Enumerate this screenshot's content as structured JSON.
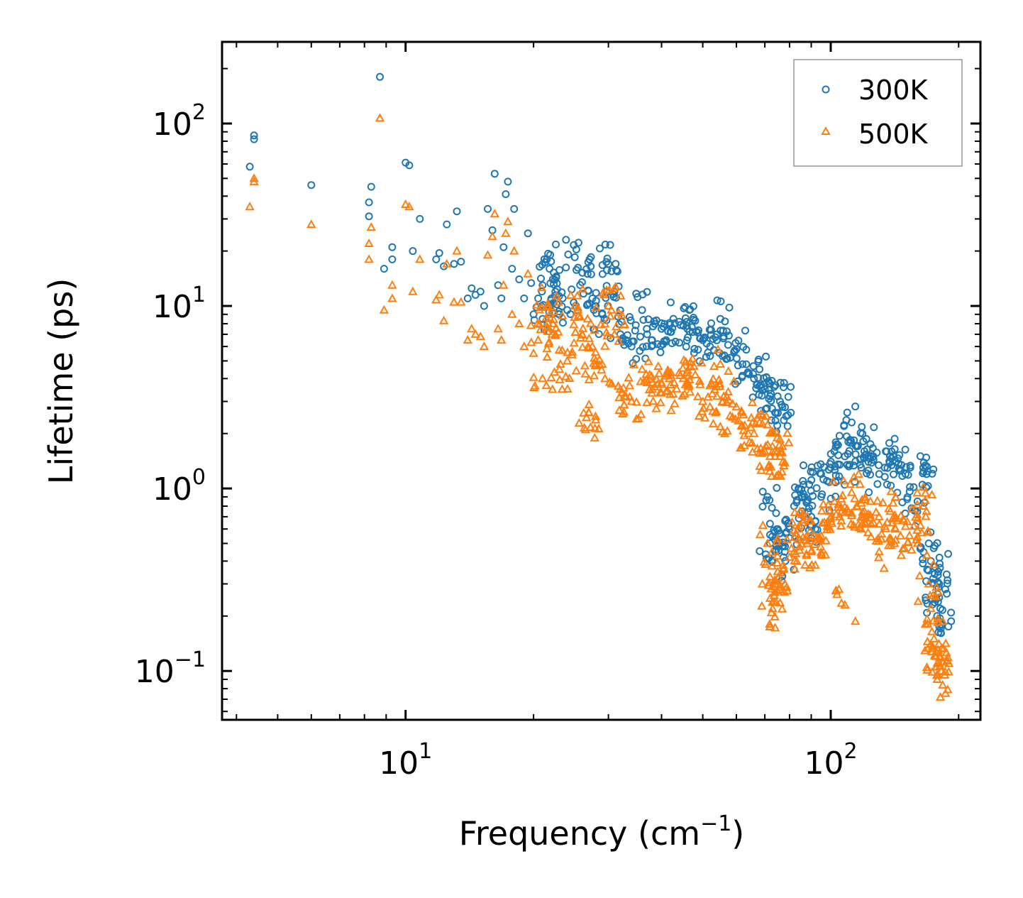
{
  "chart_data": {
    "type": "scatter",
    "title": "",
    "xlabel": "Frequency (cm",
    "xlabel_sup": "−1",
    "xlabel_end": ")",
    "ylabel": "Lifetime (ps)",
    "xscale": "log",
    "yscale": "log",
    "xlim": [
      3.7,
      225
    ],
    "ylim": [
      0.054,
      280
    ],
    "x_ticks": [
      {
        "value": 10,
        "base": "10",
        "exp": "1"
      },
      {
        "value": 100,
        "base": "10",
        "exp": "2"
      }
    ],
    "y_ticks": [
      {
        "value": 0.1,
        "base": "10",
        "exp": "−1"
      },
      {
        "value": 1,
        "base": "10",
        "exp": "0"
      },
      {
        "value": 10,
        "base": "10",
        "exp": "1"
      },
      {
        "value": 100,
        "base": "10",
        "exp": "2"
      }
    ],
    "legend_position": "top-right",
    "series": [
      {
        "name": "300K",
        "marker": "circle",
        "color": "#1f77b4",
        "points": [
          [
            4.3,
            58
          ],
          [
            4.4,
            86
          ],
          [
            4.4,
            82
          ],
          [
            6.0,
            46
          ],
          [
            8.2,
            37
          ],
          [
            8.2,
            31
          ],
          [
            8.3,
            45
          ],
          [
            8.7,
            180
          ],
          [
            8.9,
            16
          ],
          [
            9.3,
            21
          ],
          [
            9.3,
            18
          ],
          [
            10.0,
            61
          ],
          [
            10.2,
            59
          ],
          [
            10.4,
            20
          ],
          [
            10.8,
            30
          ],
          [
            11.8,
            18
          ],
          [
            12.0,
            19.5
          ],
          [
            12.3,
            16.5
          ],
          [
            12.5,
            28
          ],
          [
            13.0,
            17
          ],
          [
            13.2,
            33
          ],
          [
            13.5,
            17.5
          ],
          [
            14.0,
            11
          ],
          [
            14.3,
            12.5
          ],
          [
            14.6,
            11.5
          ],
          [
            15.0,
            12
          ],
          [
            15.3,
            10
          ],
          [
            15.6,
            34
          ],
          [
            16.0,
            26
          ],
          [
            16.2,
            53
          ],
          [
            16.5,
            13
          ],
          [
            16.8,
            11
          ],
          [
            17.0,
            21
          ],
          [
            17.2,
            41
          ],
          [
            17.4,
            48
          ],
          [
            17.8,
            16
          ],
          [
            18.0,
            34
          ],
          [
            18.5,
            14
          ],
          [
            19.0,
            11
          ],
          [
            19.4,
            25
          ],
          [
            20.0,
            9
          ],
          [
            20.5,
            11
          ],
          [
            21.0,
            8.5
          ],
          [
            21.5,
            18
          ],
          [
            21.8,
            16
          ],
          [
            22.2,
            14
          ],
          [
            22.5,
            12
          ],
          [
            23.0,
            9
          ],
          [
            24.0,
            9.5
          ],
          [
            25.0,
            18.5
          ],
          [
            26.0,
            13.5
          ],
          [
            26.8,
            15
          ],
          [
            27.5,
            11
          ],
          [
            28.0,
            10
          ],
          [
            29.0,
            9
          ],
          [
            30.0,
            17
          ],
          [
            30.5,
            15.5
          ],
          [
            31.0,
            12
          ],
          [
            32.0,
            7
          ],
          [
            33.0,
            6.5
          ],
          [
            34.0,
            6
          ],
          [
            36.0,
            9.5
          ],
          [
            37.0,
            7
          ],
          [
            38.0,
            6.5
          ],
          [
            40.0,
            7.5
          ],
          [
            41.0,
            6.5
          ],
          [
            42.0,
            7.2
          ],
          [
            44.0,
            8.2
          ],
          [
            45.0,
            7.8
          ],
          [
            46.0,
            7.5
          ],
          [
            48.0,
            8.3
          ],
          [
            50.0,
            6.5
          ],
          [
            52.0,
            6.0
          ],
          [
            54.0,
            7.0
          ],
          [
            55.0,
            8.5
          ],
          [
            56.0,
            6.8
          ],
          [
            58.0,
            5.2
          ],
          [
            60.0,
            5.8
          ],
          [
            62.0,
            4.8
          ],
          [
            64.0,
            4.3
          ],
          [
            66.0,
            4.0
          ],
          [
            68.0,
            4.5
          ],
          [
            70.0,
            3.5
          ],
          [
            72.0,
            3.2
          ],
          [
            74.0,
            2.6
          ],
          [
            75.0,
            3.2
          ],
          [
            76.0,
            3.0
          ],
          [
            77.0,
            2.8
          ],
          [
            71.0,
            0.9
          ],
          [
            72.0,
            0.5
          ],
          [
            73.0,
            0.4
          ],
          [
            74.0,
            0.45
          ],
          [
            75.0,
            0.6
          ],
          [
            76.0,
            0.5
          ],
          [
            78.0,
            0.45
          ],
          [
            80.0,
            0.6
          ],
          [
            82.0,
            0.8
          ],
          [
            84.0,
            1.0
          ],
          [
            86.0,
            1.1
          ],
          [
            88.0,
            0.85
          ],
          [
            90.0,
            0.7
          ],
          [
            92.0,
            0.6
          ],
          [
            95.0,
            0.9
          ],
          [
            98.0,
            1.1
          ],
          [
            100.0,
            1.3
          ],
          [
            102.0,
            1.6
          ],
          [
            105.0,
            1.35
          ],
          [
            108.0,
            1.5
          ],
          [
            110.0,
            1.8
          ],
          [
            112.0,
            2.3
          ],
          [
            115.0,
            1.7
          ],
          [
            118.0,
            1.3
          ],
          [
            120.0,
            1.6
          ],
          [
            124.0,
            1.75
          ],
          [
            126.0,
            1.5
          ],
          [
            130.0,
            1.2
          ],
          [
            134.0,
            1.3
          ],
          [
            138.0,
            1.5
          ],
          [
            142.0,
            1.4
          ],
          [
            146.0,
            1.25
          ],
          [
            150.0,
            1.2
          ],
          [
            155.0,
            0.78
          ],
          [
            160.0,
            0.85
          ],
          [
            165.0,
            1.3
          ],
          [
            168.0,
            1.2
          ],
          [
            170.0,
            0.5
          ],
          [
            172.0,
            0.4
          ],
          [
            175.0,
            0.3
          ],
          [
            177.0,
            0.25
          ],
          [
            178.0,
            0.2
          ],
          [
            179.0,
            0.35
          ],
          [
            180.0,
            0.3
          ],
          [
            181.0,
            0.22
          ],
          [
            182.0,
            0.18
          ]
        ]
      },
      {
        "name": "500K",
        "marker": "triangle",
        "color": "#ff7f0e",
        "points": [
          [
            4.3,
            35
          ],
          [
            4.4,
            50
          ],
          [
            4.4,
            48
          ],
          [
            6.0,
            28
          ],
          [
            8.2,
            22
          ],
          [
            8.2,
            18
          ],
          [
            8.3,
            27
          ],
          [
            8.7,
            107
          ],
          [
            8.9,
            9.5
          ],
          [
            9.3,
            13
          ],
          [
            9.3,
            11
          ],
          [
            10.0,
            36
          ],
          [
            10.2,
            35
          ],
          [
            10.4,
            12
          ],
          [
            10.8,
            18
          ],
          [
            11.8,
            10.8
          ],
          [
            12.0,
            11.5
          ],
          [
            12.3,
            8.3
          ],
          [
            12.5,
            17
          ],
          [
            13.0,
            10.5
          ],
          [
            13.2,
            20
          ],
          [
            13.5,
            10.5
          ],
          [
            14.0,
            6.5
          ],
          [
            14.3,
            7.5
          ],
          [
            14.6,
            7
          ],
          [
            15.0,
            6.8
          ],
          [
            15.3,
            6
          ],
          [
            15.6,
            19
          ],
          [
            16.0,
            24
          ],
          [
            16.2,
            32
          ],
          [
            16.5,
            7.5
          ],
          [
            16.8,
            6.5
          ],
          [
            17.0,
            13
          ],
          [
            17.2,
            25
          ],
          [
            17.4,
            29
          ],
          [
            17.8,
            9
          ],
          [
            18.0,
            20
          ],
          [
            18.5,
            8
          ],
          [
            19.0,
            6
          ],
          [
            19.4,
            15
          ],
          [
            20.0,
            5.5
          ],
          [
            20.5,
            6.5
          ],
          [
            21.0,
            4.0
          ],
          [
            21.5,
            10
          ],
          [
            21.8,
            9
          ],
          [
            22.2,
            8
          ],
          [
            22.5,
            7
          ],
          [
            23.0,
            4.5
          ],
          [
            24.0,
            5
          ],
          [
            25.0,
            10
          ],
          [
            26.0,
            7
          ],
          [
            26.8,
            8.5
          ],
          [
            27.5,
            6
          ],
          [
            28.0,
            5
          ],
          [
            29.0,
            4.8
          ],
          [
            30.0,
            10
          ],
          [
            30.5,
            9.5
          ],
          [
            31.0,
            7
          ],
          [
            32.0,
            3.5
          ],
          [
            33.0,
            3.2
          ],
          [
            34.0,
            3
          ],
          [
            36.0,
            4.5
          ],
          [
            37.0,
            3.8
          ],
          [
            38.0,
            3.5
          ],
          [
            40.0,
            3.8
          ],
          [
            41.0,
            3.4
          ],
          [
            42.0,
            3.7
          ],
          [
            44.0,
            4.3
          ],
          [
            45.0,
            4.0
          ],
          [
            46.0,
            3.8
          ],
          [
            48.0,
            4.2
          ],
          [
            50.0,
            3.0
          ],
          [
            52.0,
            2.8
          ],
          [
            54.0,
            3.2
          ],
          [
            55.0,
            4.8
          ],
          [
            56.0,
            3.2
          ],
          [
            58.0,
            2.5
          ],
          [
            60.0,
            2.8
          ],
          [
            62.0,
            2.2
          ],
          [
            64.0,
            2.0
          ],
          [
            66.0,
            2.0
          ],
          [
            68.0,
            2.3
          ],
          [
            70.0,
            1.6
          ],
          [
            72.0,
            1.5
          ],
          [
            74.0,
            1.5
          ],
          [
            75.0,
            1.6
          ],
          [
            76.0,
            1.5
          ],
          [
            77.0,
            1.7
          ],
          [
            26.5,
            2.1
          ],
          [
            27.0,
            2.6
          ],
          [
            71.0,
            0.5
          ],
          [
            72.0,
            0.25
          ],
          [
            73.0,
            0.22
          ],
          [
            74.0,
            0.3
          ],
          [
            75.0,
            0.35
          ],
          [
            76.0,
            0.28
          ],
          [
            78.0,
            0.3
          ],
          [
            80.0,
            0.42
          ],
          [
            82.0,
            0.45
          ],
          [
            84.0,
            0.6
          ],
          [
            86.0,
            0.65
          ],
          [
            88.0,
            0.5
          ],
          [
            90.0,
            0.45
          ],
          [
            92.0,
            0.38
          ],
          [
            95.0,
            0.55
          ],
          [
            98.0,
            0.65
          ],
          [
            100.0,
            0.7
          ],
          [
            102.0,
            0.85
          ],
          [
            105.0,
            0.7
          ],
          [
            108.0,
            0.23
          ],
          [
            110.0,
            0.75
          ],
          [
            112.0,
            0.95
          ],
          [
            115.0,
            0.8
          ],
          [
            118.0,
            0.6
          ],
          [
            120.0,
            0.75
          ],
          [
            124.0,
            0.85
          ],
          [
            126.0,
            0.65
          ],
          [
            130.0,
            0.45
          ],
          [
            134.0,
            0.62
          ],
          [
            138.0,
            0.75
          ],
          [
            142.0,
            0.6
          ],
          [
            146.0,
            0.55
          ],
          [
            150.0,
            0.62
          ],
          [
            155.0,
            0.46
          ],
          [
            160.0,
            0.5
          ],
          [
            165.0,
            0.8
          ],
          [
            168.0,
            0.75
          ],
          [
            170.0,
            0.3
          ],
          [
            172.0,
            0.22
          ],
          [
            175.0,
            0.15
          ],
          [
            177.0,
            0.12
          ],
          [
            178.0,
            0.09
          ],
          [
            179.0,
            0.13
          ],
          [
            180.0,
            0.11
          ],
          [
            181.0,
            0.12
          ],
          [
            182.0,
            0.1
          ]
        ]
      }
    ]
  }
}
